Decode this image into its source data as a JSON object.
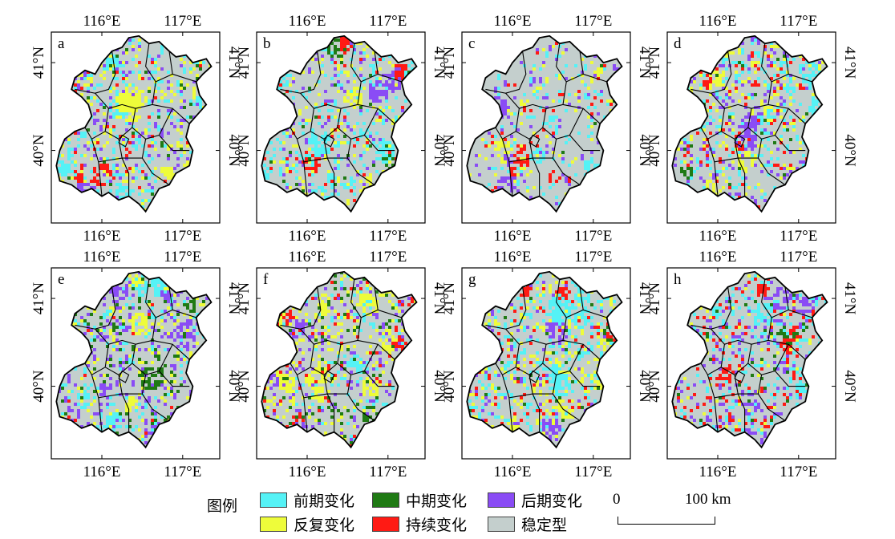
{
  "panels": [
    {
      "letter": "a",
      "seed": 11,
      "weights": {
        "stable": 48,
        "early": 16,
        "repeated": 14,
        "mid": 3,
        "continuous": 5,
        "late": 10
      }
    },
    {
      "letter": "b",
      "seed": 23,
      "weights": {
        "stable": 50,
        "early": 22,
        "repeated": 12,
        "mid": 3,
        "continuous": 5,
        "late": 8
      }
    },
    {
      "letter": "c",
      "seed": 37,
      "weights": {
        "stable": 66,
        "early": 12,
        "repeated": 9,
        "mid": 1,
        "continuous": 4,
        "late": 8
      }
    },
    {
      "letter": "d",
      "seed": 41,
      "weights": {
        "stable": 42,
        "early": 20,
        "repeated": 16,
        "mid": 3,
        "continuous": 8,
        "late": 11
      }
    },
    {
      "letter": "e",
      "seed": 53,
      "weights": {
        "stable": 46,
        "early": 14,
        "repeated": 12,
        "mid": 8,
        "continuous": 2,
        "late": 18
      }
    },
    {
      "letter": "f",
      "seed": 67,
      "weights": {
        "stable": 44,
        "early": 10,
        "repeated": 18,
        "mid": 10,
        "continuous": 6,
        "late": 12
      }
    },
    {
      "letter": "g",
      "seed": 79,
      "weights": {
        "stable": 40,
        "early": 24,
        "repeated": 18,
        "mid": 3,
        "continuous": 8,
        "late": 7
      }
    },
    {
      "letter": "h",
      "seed": 83,
      "weights": {
        "stable": 42,
        "early": 18,
        "repeated": 6,
        "mid": 4,
        "continuous": 14,
        "late": 16
      }
    }
  ],
  "axes": {
    "x_ticks": [
      "116°E",
      "117°E"
    ],
    "y_ticks": [
      "41°N",
      "40°N"
    ]
  },
  "legend": {
    "title": "图例",
    "items": [
      {
        "key": "early",
        "label": "前期变化",
        "color": "#55f2f6"
      },
      {
        "key": "repeated",
        "label": "反复变化",
        "color": "#eefc3a"
      },
      {
        "key": "mid",
        "label": "中期变化",
        "color": "#1f7a14"
      },
      {
        "key": "continuous",
        "label": "持续变化",
        "color": "#ff1a14"
      },
      {
        "key": "late",
        "label": "后期变化",
        "color": "#8a4cf5"
      },
      {
        "key": "stable",
        "label": "稳定型",
        "color": "#c4cfcd"
      }
    ]
  },
  "scale_bar": {
    "start": "0",
    "end": "100 km"
  }
}
